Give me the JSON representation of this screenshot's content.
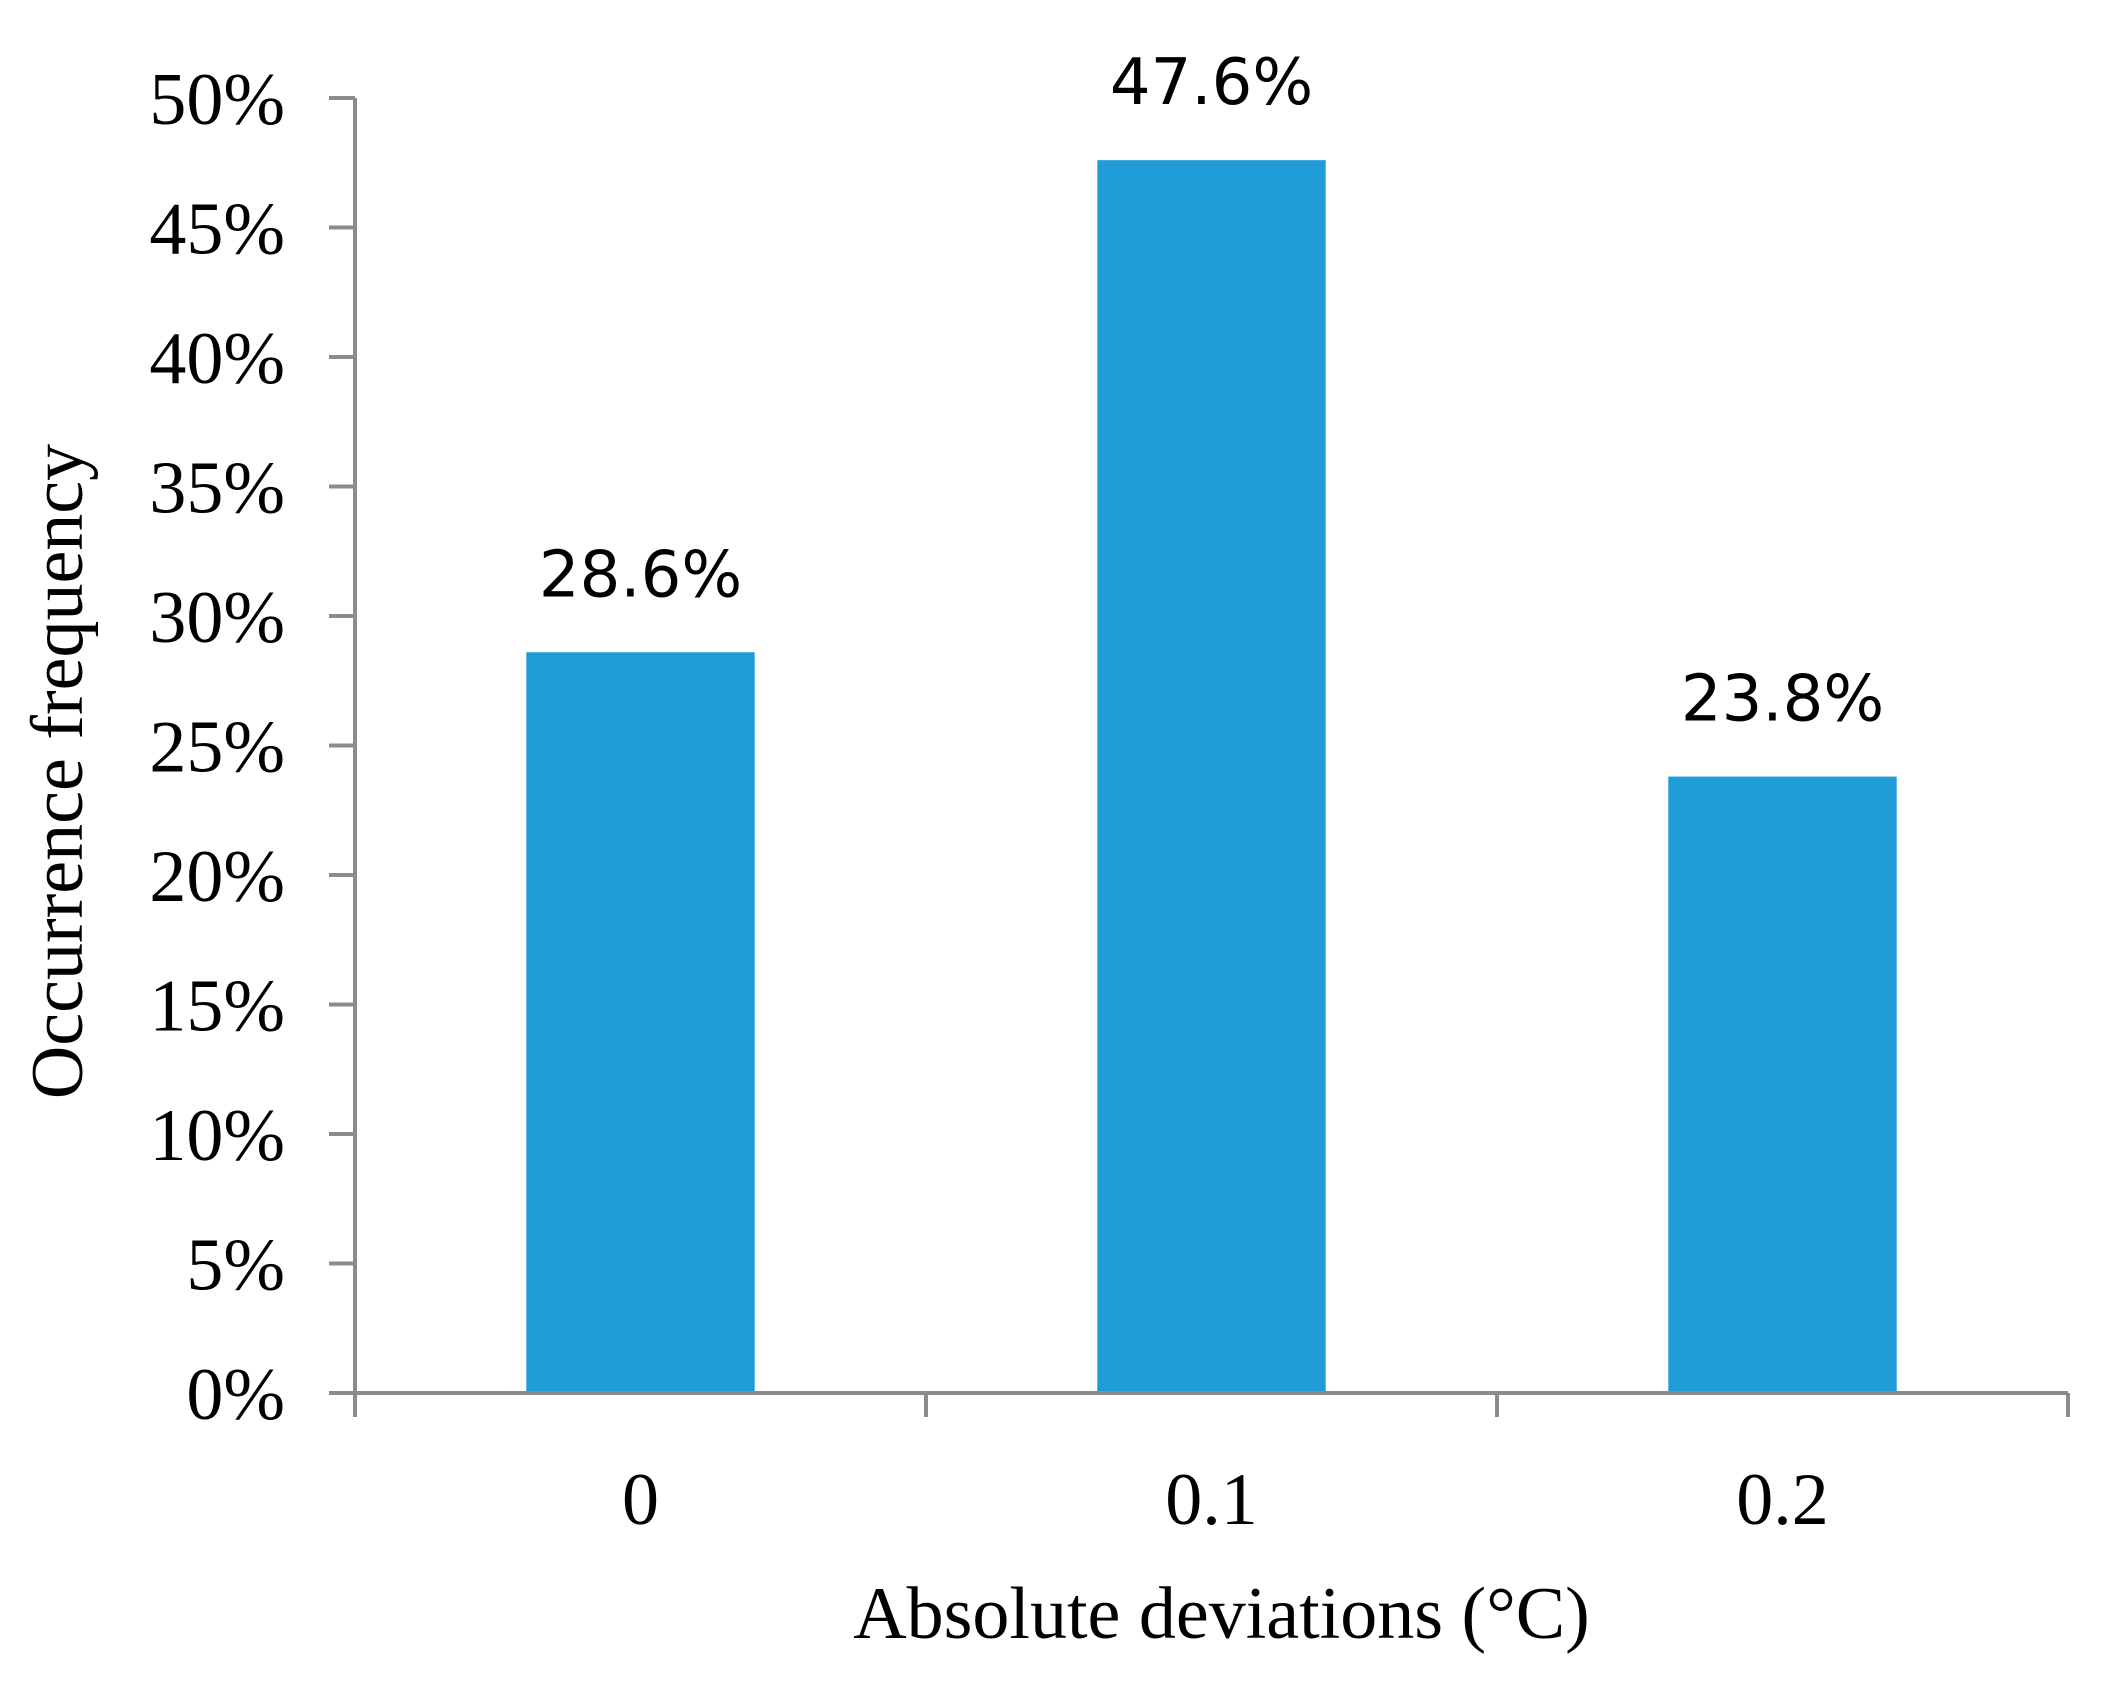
{
  "chart_data": {
    "type": "bar",
    "title": "",
    "xlabel": "Absolute deviations (°C)",
    "ylabel": "Occurrence frequency",
    "categories": [
      "0",
      "0.1",
      "0.2"
    ],
    "values": [
      28.6,
      47.6,
      23.8
    ],
    "data_labels": [
      "28.6%",
      "47.6%",
      "23.8%"
    ],
    "ylim": [
      0,
      50
    ],
    "y_ticks": [
      0,
      5,
      10,
      15,
      20,
      25,
      30,
      35,
      40,
      45,
      50
    ],
    "y_tick_labels": [
      "0%",
      "5%",
      "10%",
      "15%",
      "20%",
      "25%",
      "30%",
      "35%",
      "40%",
      "45%",
      "50%"
    ],
    "grid": false,
    "legend": "none",
    "bar_color": "#1f9bd7",
    "axis_color": "#8c8c8c"
  }
}
